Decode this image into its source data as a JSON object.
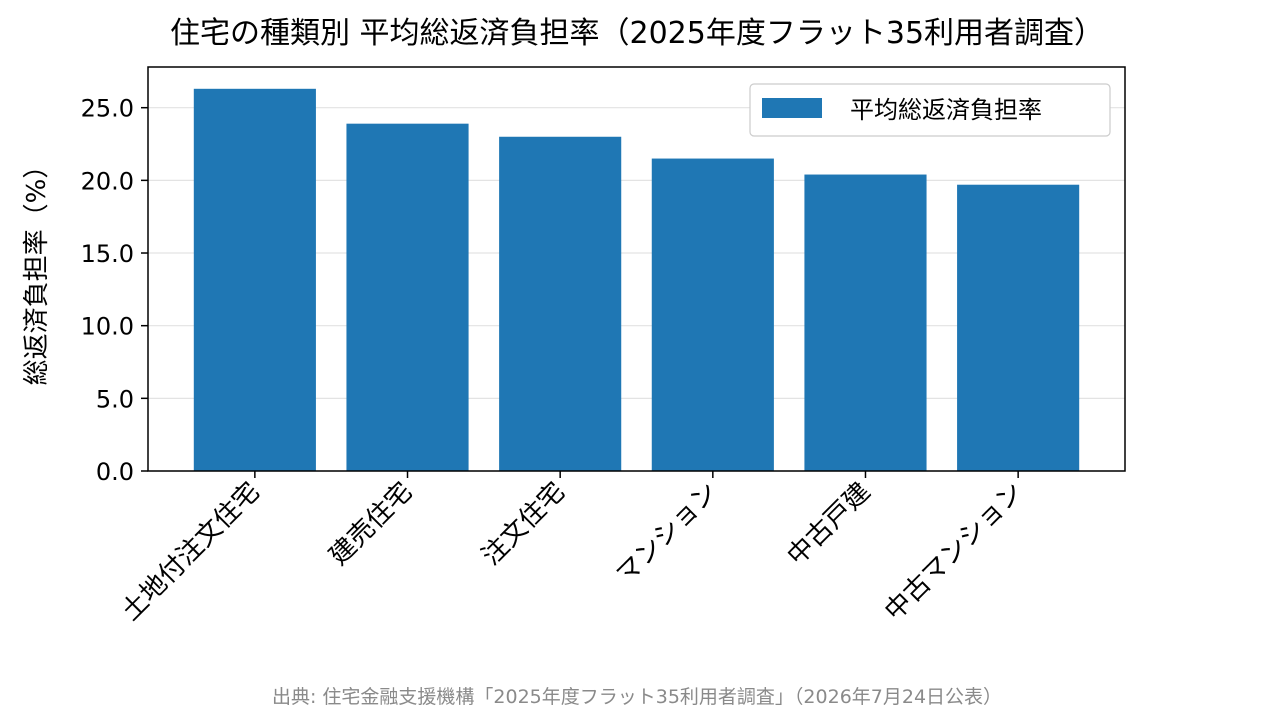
{
  "chart_data": {
    "type": "bar",
    "title": "住宅の種類別 平均総返済負担率（2025年度フラット35利用者調査）",
    "categories": [
      "土地付注文住宅",
      "建売住宅",
      "注文住宅",
      "マンション",
      "中古戸建",
      "中古マンション"
    ],
    "series": [
      {
        "name": "平均総返済負担率",
        "values": [
          26.3,
          23.9,
          23.0,
          21.5,
          20.4,
          19.7
        ]
      }
    ],
    "xlabel": "",
    "ylabel": "総返済負担率（%）",
    "ylim": [
      0,
      27.8
    ],
    "yticks": [
      "0.0",
      "5.0",
      "10.0",
      "15.0",
      "20.0",
      "25.0"
    ],
    "grid": "y",
    "legend_position": "top-right",
    "bar_color": "#1f77b4",
    "source": "出典: 住宅金融支援機構「2025年度フラット35利用者調査」（2026年7月24日公表）"
  }
}
